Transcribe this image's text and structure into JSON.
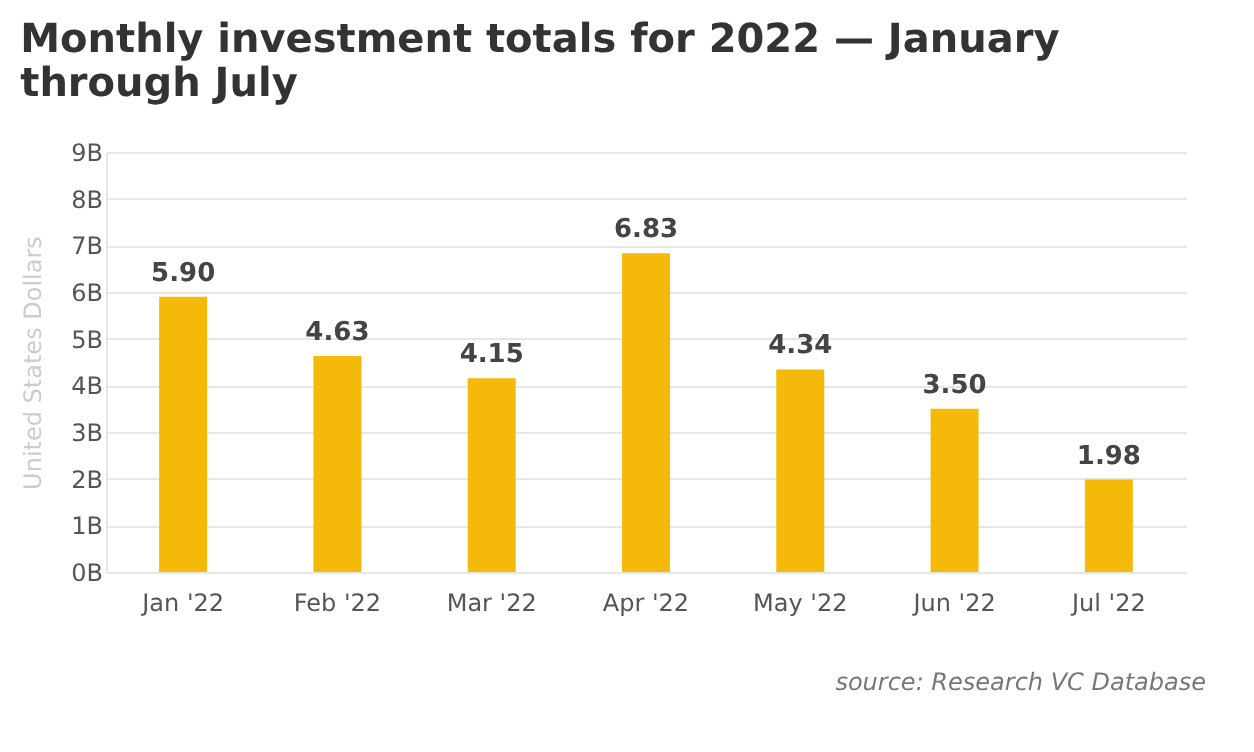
{
  "chart_data": {
    "type": "bar",
    "title": [
      "Monthly investment totals for 2022 — January",
      "through July"
    ],
    "categories": [
      "Jan '22",
      "Feb '22",
      "Mar '22",
      "Apr '22",
      "May '22",
      "Jun '22",
      "Jul '22"
    ],
    "values": [
      5.9,
      4.63,
      4.15,
      6.83,
      4.34,
      3.5,
      1.98
    ],
    "color": "#f5b90a",
    "ylabel": "United States Dollars",
    "ylim": [
      0,
      9
    ],
    "yticks": [
      {
        "value": 0,
        "label": "0B"
      },
      {
        "value": 1,
        "label": "1B"
      },
      {
        "value": 2,
        "label": "2B"
      },
      {
        "value": 3,
        "label": "3B"
      },
      {
        "value": 4,
        "label": "4B"
      },
      {
        "value": 5,
        "label": "5B"
      },
      {
        "value": 6,
        "label": "6B"
      },
      {
        "value": 7,
        "label": "7B"
      },
      {
        "value": 8,
        "label": "8B"
      },
      {
        "value": 9,
        "label": "9B"
      }
    ],
    "grid": "y",
    "value_labels": [
      "5.90",
      "4.63",
      "4.15",
      "6.83",
      "4.34",
      "3.50",
      "1.98"
    ],
    "annotations": [
      "source: Research VC Database"
    ]
  }
}
